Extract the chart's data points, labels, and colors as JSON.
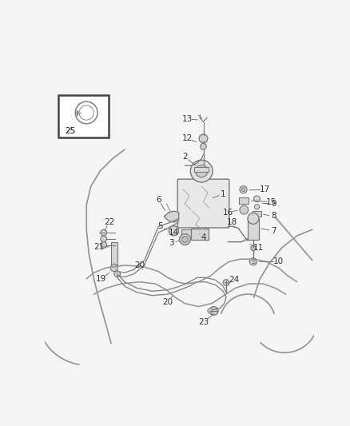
{
  "bg_color": "#f5f5f5",
  "lc": "#888888",
  "tc": "#444444",
  "fig_width": 4.38,
  "fig_height": 5.33,
  "dpi": 100,
  "body_color": "#f0f0f0",
  "part_color": "#d8d8d8",
  "part_edge": "#777777"
}
